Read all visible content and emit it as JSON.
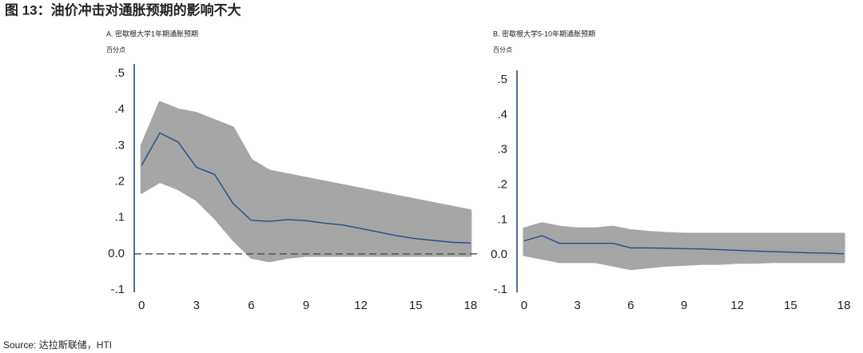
{
  "header": {
    "title": "图 13：油价冲击对通胀预期的影响不大"
  },
  "footer": {
    "source": "Source: 达拉斯联储，HTI"
  },
  "chart_data": [
    {
      "type": "line",
      "title": "A. 密歇根大学1年期通胀预期",
      "y_label": "百分点",
      "x": [
        0,
        1,
        2,
        3,
        4,
        5,
        6,
        7,
        8,
        9,
        10,
        11,
        12,
        13,
        14,
        15,
        16,
        17,
        18
      ],
      "series": [
        {
          "color": "#1f4e8c",
          "values": [
            0.245,
            0.335,
            0.31,
            0.24,
            0.22,
            0.14,
            0.093,
            0.09,
            0.095,
            0.092,
            0.085,
            0.08,
            0.07,
            0.06,
            0.05,
            0.042,
            0.037,
            0.032,
            0.03
          ]
        }
      ],
      "band": {
        "color": "#a6a6a6",
        "upper": [
          0.3,
          0.42,
          0.4,
          0.39,
          0.37,
          0.35,
          0.26,
          0.23,
          0.22,
          0.21,
          0.2,
          0.19,
          0.18,
          0.17,
          0.16,
          0.15,
          0.14,
          0.13,
          0.12
        ],
        "lower": [
          0.17,
          0.2,
          0.18,
          0.15,
          0.1,
          0.04,
          -0.01,
          -0.02,
          -0.01,
          -0.005,
          -0.005,
          -0.005,
          -0.005,
          -0.005,
          -0.005,
          -0.005,
          -0.005,
          -0.005,
          -0.005
        ]
      },
      "reference_line": {
        "value": 0,
        "style": "dashed"
      },
      "xlim": [
        -0.4,
        18.4
      ],
      "xticks": [
        0,
        3,
        6,
        9,
        12,
        15,
        18
      ],
      "ylim": [
        -0.1,
        0.5
      ],
      "yticks": [
        {
          "value": -0.1,
          "label": "-.1"
        },
        {
          "value": 0,
          "label": "0.0"
        },
        {
          "value": 0.1,
          "label": ".1"
        },
        {
          "value": 0.2,
          "label": ".2"
        },
        {
          "value": 0.3,
          "label": ".3"
        },
        {
          "value": 0.4,
          "label": ".4"
        },
        {
          "value": 0.5,
          "label": ".5"
        }
      ]
    },
    {
      "type": "line",
      "title": "B. 密歇根大学5-10年期通胀预期",
      "y_label": "百分点",
      "x": [
        0,
        1,
        2,
        3,
        4,
        5,
        6,
        7,
        8,
        9,
        10,
        11,
        12,
        13,
        14,
        15,
        16,
        17,
        18
      ],
      "series": [
        {
          "color": "#1f4e8c",
          "values": [
            0.04,
            0.055,
            0.033,
            0.033,
            0.033,
            0.033,
            0.02,
            0.02,
            0.019,
            0.018,
            0.017,
            0.015,
            0.013,
            0.011,
            0.009,
            0.008,
            0.006,
            0.005,
            0.003
          ]
        }
      ],
      "band": {
        "color": "#a6a6a6",
        "upper": [
          0.075,
          0.09,
          0.08,
          0.075,
          0.075,
          0.08,
          0.07,
          0.065,
          0.062,
          0.06,
          0.06,
          0.06,
          0.06,
          0.06,
          0.06,
          0.06,
          0.06,
          0.06,
          0.06
        ],
        "lower": [
          0.0,
          -0.01,
          -0.02,
          -0.02,
          -0.02,
          -0.03,
          -0.04,
          -0.035,
          -0.03,
          -0.028,
          -0.025,
          -0.025,
          -0.022,
          -0.022,
          -0.02,
          -0.02,
          -0.02,
          -0.02,
          -0.02
        ]
      },
      "xlim": [
        -0.4,
        18.4
      ],
      "xticks": [
        0,
        3,
        6,
        9,
        12,
        15,
        18
      ],
      "ylim": [
        -0.1,
        0.5
      ],
      "yticks": [
        {
          "value": -0.1,
          "label": "-.1"
        },
        {
          "value": 0,
          "label": "0.0"
        },
        {
          "value": 0.1,
          "label": ".1"
        },
        {
          "value": 0.2,
          "label": ".2"
        },
        {
          "value": 0.3,
          "label": ".3"
        },
        {
          "value": 0.4,
          "label": ".4"
        },
        {
          "value": 0.5,
          "label": ".5"
        }
      ]
    }
  ]
}
